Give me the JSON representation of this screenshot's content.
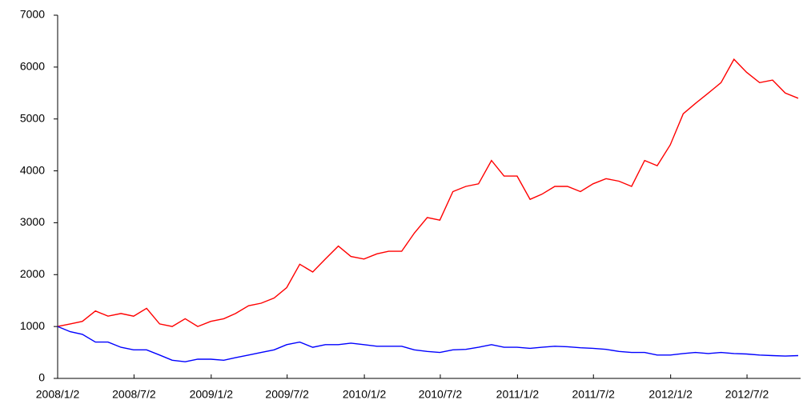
{
  "chart_data": {
    "type": "line",
    "x": [
      "2008/1/2",
      "2008/2/1",
      "2008/3/1",
      "2008/4/1",
      "2008/5/1",
      "2008/6/1",
      "2008/7/1",
      "2008/8/1",
      "2008/9/1",
      "2008/10/1",
      "2008/11/1",
      "2008/12/1",
      "2009/1/1",
      "2009/2/1",
      "2009/3/1",
      "2009/4/1",
      "2009/5/1",
      "2009/6/1",
      "2009/7/1",
      "2009/8/1",
      "2009/9/1",
      "2009/10/1",
      "2009/11/1",
      "2009/12/1",
      "2010/1/1",
      "2010/2/1",
      "2010/3/1",
      "2010/4/1",
      "2010/5/1",
      "2010/6/1",
      "2010/7/1",
      "2010/8/1",
      "2010/9/1",
      "2010/10/1",
      "2010/11/1",
      "2010/12/1",
      "2011/1/1",
      "2011/2/1",
      "2011/3/1",
      "2011/4/1",
      "2011/5/1",
      "2011/6/1",
      "2011/7/1",
      "2011/8/1",
      "2011/9/1",
      "2011/10/1",
      "2011/11/1",
      "2011/12/1",
      "2012/1/1",
      "2012/2/1",
      "2012/3/1",
      "2012/4/1",
      "2012/5/1",
      "2012/6/1",
      "2012/7/1",
      "2012/8/1",
      "2012/9/1",
      "2012/10/1",
      "2012/11/1"
    ],
    "series": [
      {
        "color": "#ff0000",
        "values": [
          1000,
          1050,
          1100,
          1300,
          1200,
          1250,
          1200,
          1350,
          1050,
          1000,
          1150,
          1000,
          1100,
          1150,
          1250,
          1400,
          1450,
          1550,
          1750,
          2200,
          2050,
          2300,
          2550,
          2350,
          2300,
          2400,
          2450,
          2450,
          2800,
          3100,
          3050,
          3600,
          3700,
          3750,
          4200,
          3900,
          3900,
          3450,
          3550,
          3700,
          3700,
          3600,
          3750,
          3850,
          3800,
          3700,
          4200,
          4100,
          4500,
          5100,
          5300,
          5500,
          5700,
          6150,
          5900,
          5700,
          5750,
          5500,
          5400
        ]
      },
      {
        "color": "#0000ff",
        "values": [
          1000,
          900,
          850,
          700,
          700,
          600,
          550,
          550,
          450,
          350,
          320,
          370,
          370,
          350,
          400,
          450,
          500,
          550,
          650,
          700,
          600,
          650,
          650,
          680,
          650,
          620,
          620,
          620,
          550,
          520,
          500,
          550,
          560,
          600,
          650,
          600,
          600,
          580,
          600,
          620,
          610,
          590,
          580,
          560,
          520,
          500,
          500,
          450,
          450,
          480,
          500,
          480,
          500,
          480,
          470,
          450,
          440,
          430,
          440
        ]
      }
    ],
    "xlim": [
      "2008/1/2",
      "2012/11/1"
    ],
    "xticks": [
      "2008/1/2",
      "2008/7/2",
      "2009/1/2",
      "2009/7/2",
      "2010/1/2",
      "2010/7/2",
      "2011/1/2",
      "2011/7/2",
      "2012/1/2",
      "2012/7/2"
    ],
    "ylim": [
      0,
      7000
    ],
    "yticks": [
      0,
      1000,
      2000,
      3000,
      4000,
      5000,
      6000,
      7000
    ]
  }
}
